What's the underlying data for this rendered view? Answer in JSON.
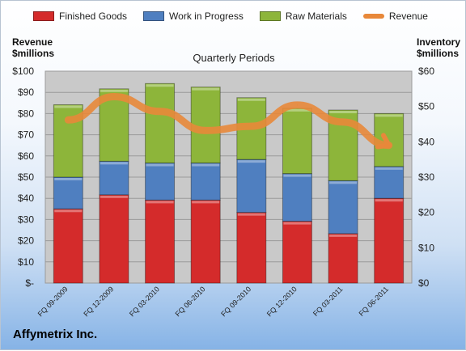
{
  "legend": {
    "finished_goods": "Finished Goods",
    "work_in_progress": "Work in Progress",
    "raw_materials": "Raw Materials",
    "revenue": "Revenue"
  },
  "axes": {
    "left_title_line1": "Revenue",
    "left_title_line2": "$millions",
    "right_title_line1": "Inventory",
    "right_title_line2": "$millions"
  },
  "plot_title": "Quarterly Periods",
  "company": "Affymetrix Inc.",
  "colors": {
    "finished_goods": "#d42b2b",
    "work_in_progress": "#4f7fc0",
    "raw_materials": "#8db53a",
    "revenue": "#e8883a"
  },
  "chart_data": {
    "type": "bar",
    "stacked": true,
    "categories": [
      "FQ 09-2009",
      "FQ 12-2009",
      "FQ 03-2010",
      "FQ 06-2010",
      "FQ 09-2010",
      "FQ 12-2010",
      "FQ 03-2011",
      "FQ 06-2011"
    ],
    "series": [
      {
        "name": "Finished Goods",
        "axis": "right",
        "values": [
          21,
          25,
          23.5,
          23.5,
          20,
          17.5,
          14,
          24
        ]
      },
      {
        "name": "Work in Progress",
        "axis": "right",
        "values": [
          9,
          9.5,
          10.5,
          10.5,
          15,
          13.5,
          15,
          9
        ]
      },
      {
        "name": "Raw Materials",
        "axis": "right",
        "values": [
          20.5,
          20.5,
          22.5,
          21.5,
          17.5,
          18.5,
          20,
          15
        ]
      },
      {
        "name": "Revenue",
        "type": "line",
        "axis": "left",
        "values": [
          77,
          88,
          81,
          72,
          74,
          84,
          76,
          65
        ]
      }
    ],
    "ylim_left": [
      0,
      100
    ],
    "ylim_right": [
      0,
      60
    ],
    "left_ticks": [
      "$-",
      "$10",
      "$20",
      "$30",
      "$40",
      "$50",
      "$60",
      "$70",
      "$80",
      "$90",
      "$100"
    ],
    "right_ticks": [
      "$0",
      "$10",
      "$20",
      "$30",
      "$40",
      "$50",
      "$60"
    ],
    "grid": true,
    "legend_position": "top"
  }
}
